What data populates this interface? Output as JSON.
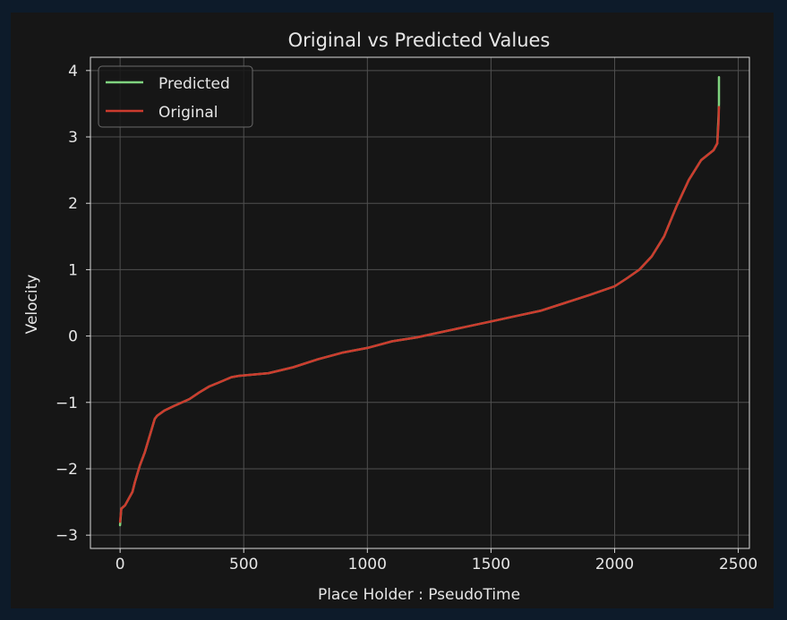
{
  "chart_data": {
    "type": "line",
    "title": "Original vs Predicted Values",
    "xlabel": "Place Holder : PseudoTime",
    "ylabel": "Velocity",
    "xlim": [
      -120,
      2545
    ],
    "ylim": [
      -3.2,
      4.2
    ],
    "xticks": [
      0,
      500,
      1000,
      1500,
      2000,
      2500
    ],
    "xtick_labels": [
      "0",
      "500",
      "1000",
      "1500",
      "2000",
      "2500"
    ],
    "yticks": [
      -3,
      -2,
      -1,
      0,
      1,
      2,
      3,
      4
    ],
    "ytick_labels": [
      "−3",
      "−2",
      "−1",
      "0",
      "1",
      "2",
      "3",
      "4"
    ],
    "grid": true,
    "legend_position": "top-left",
    "colors": {
      "figure_background": "#0d1b2a",
      "axes_background": "#161616",
      "grid": "#505050",
      "text": "#e6e6e6",
      "predicted": "#7fd37f",
      "original": "#cc3b2e"
    },
    "series": [
      {
        "name": "Predicted",
        "color": "#7fd37f",
        "x": [
          0,
          5,
          20,
          50,
          60,
          80,
          100,
          120,
          140,
          150,
          180,
          220,
          280,
          320,
          360,
          400,
          450,
          480,
          600,
          700,
          800,
          900,
          1000,
          1100,
          1200,
          1300,
          1400,
          1500,
          1600,
          1700,
          1800,
          1900,
          2000,
          2050,
          2100,
          2150,
          2200,
          2250,
          2300,
          2350,
          2400,
          2415,
          2420,
          2422,
          2422
        ],
        "y": [
          -2.85,
          -2.6,
          -2.55,
          -2.35,
          -2.2,
          -1.95,
          -1.75,
          -1.5,
          -1.25,
          -1.2,
          -1.12,
          -1.05,
          -0.95,
          -0.85,
          -0.76,
          -0.7,
          -0.62,
          -0.6,
          -0.56,
          -0.47,
          -0.35,
          -0.25,
          -0.18,
          -0.08,
          -0.02,
          0.06,
          0.14,
          0.22,
          0.3,
          0.38,
          0.5,
          0.62,
          0.75,
          0.87,
          1.0,
          1.2,
          1.5,
          1.95,
          2.35,
          2.65,
          2.8,
          2.9,
          3.3,
          3.5,
          3.9
        ]
      },
      {
        "name": "Original",
        "color": "#cc3b2e",
        "x": [
          0,
          5,
          20,
          50,
          60,
          80,
          100,
          120,
          140,
          150,
          180,
          220,
          280,
          320,
          360,
          400,
          450,
          480,
          600,
          700,
          800,
          900,
          1000,
          1100,
          1200,
          1300,
          1400,
          1500,
          1600,
          1700,
          1800,
          1900,
          2000,
          2050,
          2100,
          2150,
          2200,
          2250,
          2300,
          2350,
          2400,
          2415,
          2420,
          2422
        ],
        "y": [
          -2.8,
          -2.6,
          -2.55,
          -2.35,
          -2.2,
          -1.95,
          -1.75,
          -1.5,
          -1.25,
          -1.2,
          -1.12,
          -1.05,
          -0.95,
          -0.85,
          -0.76,
          -0.7,
          -0.62,
          -0.6,
          -0.56,
          -0.47,
          -0.35,
          -0.25,
          -0.18,
          -0.08,
          -0.02,
          0.06,
          0.14,
          0.22,
          0.3,
          0.38,
          0.5,
          0.62,
          0.75,
          0.87,
          1.0,
          1.2,
          1.5,
          1.95,
          2.35,
          2.65,
          2.8,
          2.9,
          3.2,
          3.45
        ]
      }
    ]
  }
}
